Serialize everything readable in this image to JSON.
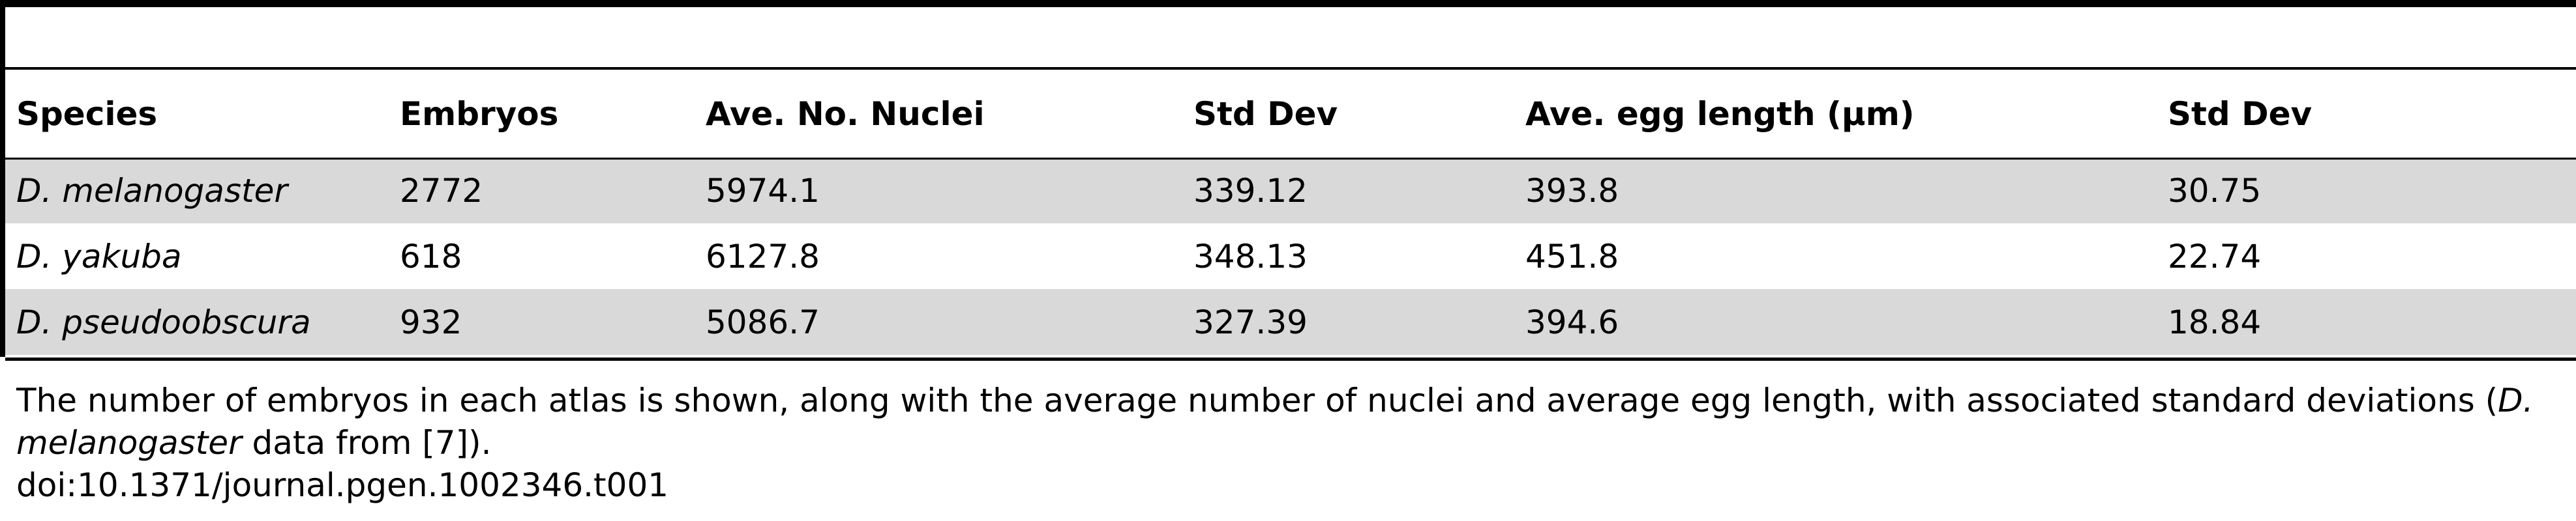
{
  "table": {
    "headers": [
      "Species",
      "Embryos",
      "Ave. No. Nuclei",
      "Std Dev",
      "Ave. egg length (μm)",
      "Std Dev"
    ],
    "rows": [
      {
        "species": "D. melanogaster",
        "embryos": "2772",
        "nuclei": "5974.1",
        "nuclei_sd": "339.12",
        "egg_length": "393.8",
        "egg_sd": "30.75"
      },
      {
        "species": "D. yakuba",
        "embryos": "618",
        "nuclei": "6127.8",
        "nuclei_sd": "348.13",
        "egg_length": "451.8",
        "egg_sd": "22.74"
      },
      {
        "species": "D. pseudoobscura",
        "embryos": "932",
        "nuclei": "5086.7",
        "nuclei_sd": "327.39",
        "egg_length": "394.6",
        "egg_sd": "18.84"
      }
    ]
  },
  "footnote": {
    "text_before": "The number of embryos in each atlas is shown, along with the average number of nuclei and average egg length, with associated standard deviations (",
    "italic_species": "D. melanogaster",
    "text_after": " data from [7]).",
    "doi": "doi:10.1371/journal.pgen.1002346.t001"
  }
}
